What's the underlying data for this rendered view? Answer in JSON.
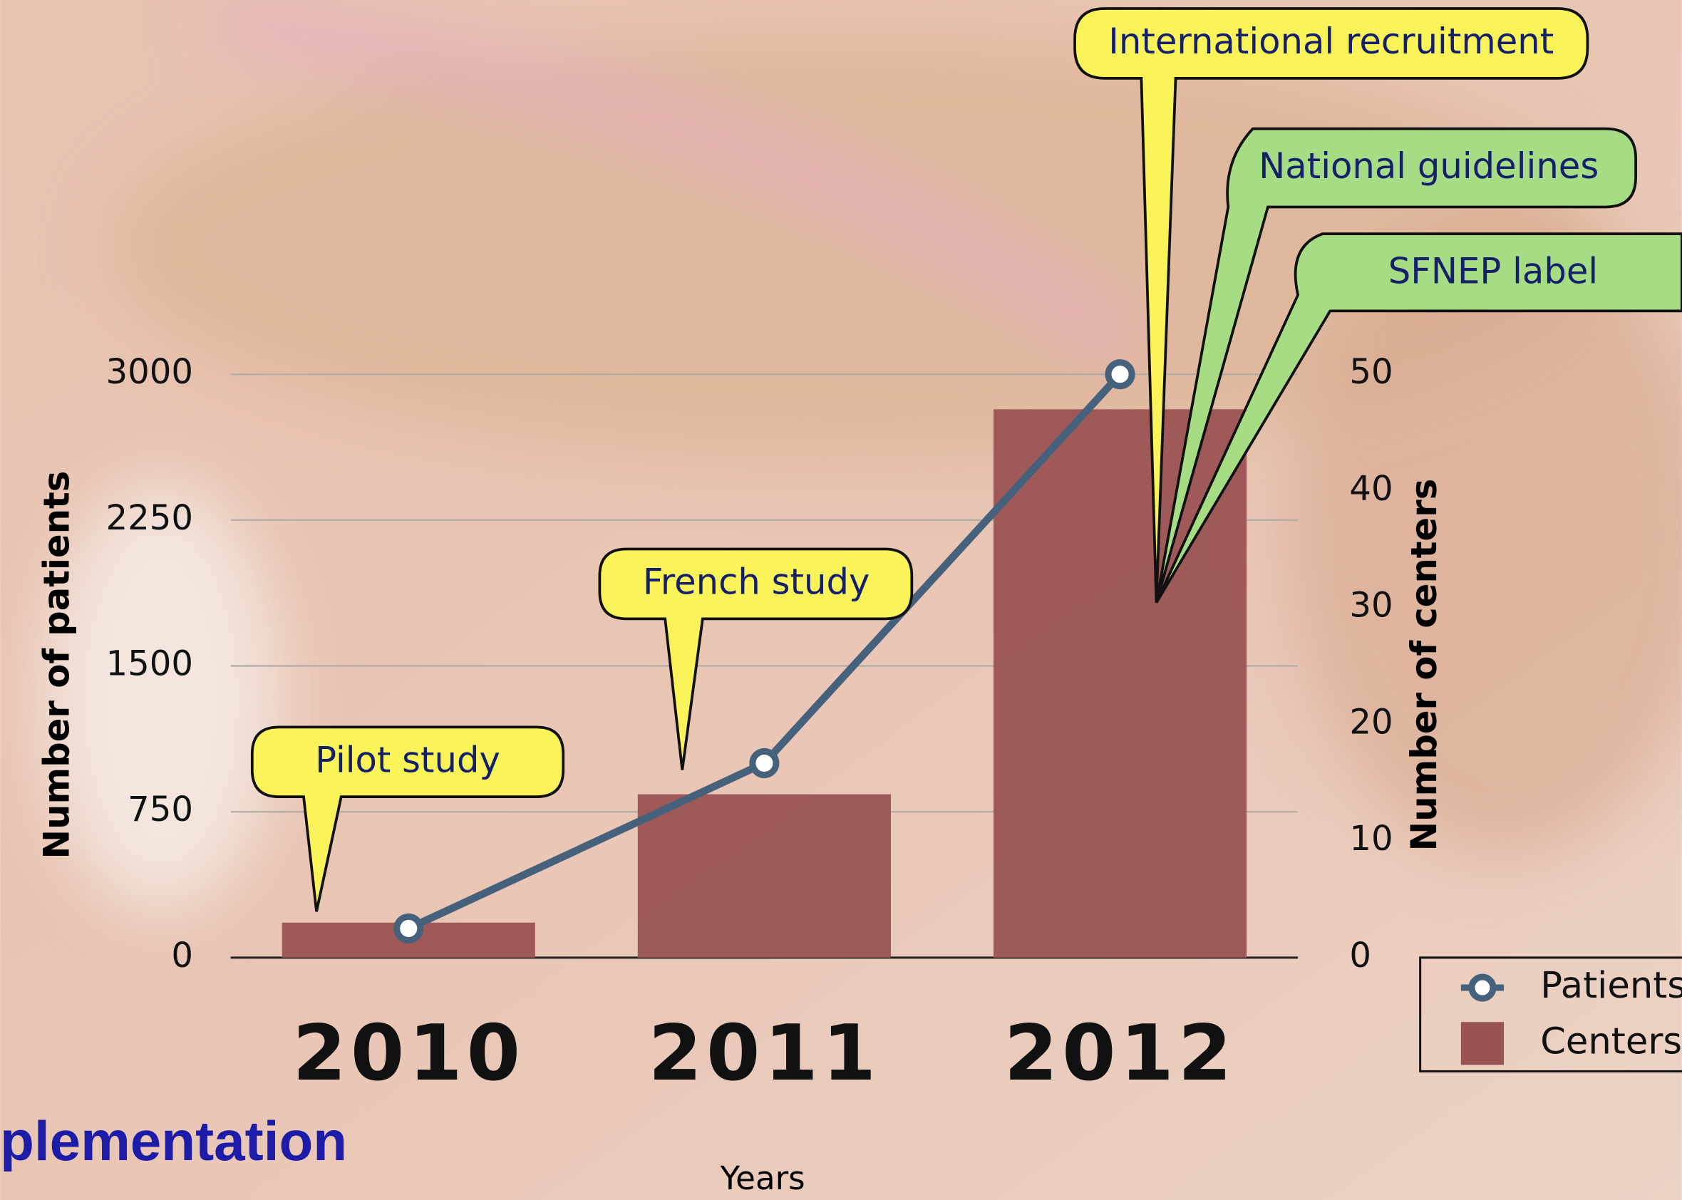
{
  "chart_data": {
    "type": "combo",
    "categories": [
      "2010",
      "2011",
      "2012"
    ],
    "series": [
      {
        "name": "Centers",
        "type": "bar",
        "axis": "y2",
        "color": "#9a5353",
        "values": [
          3,
          14,
          47
        ]
      },
      {
        "name": "Patients",
        "type": "line",
        "axis": "y",
        "color": "#46617b",
        "values": [
          150,
          1000,
          3000
        ]
      }
    ],
    "ylim": [
      0,
      3000
    ],
    "yticks": [
      0,
      750,
      1500,
      2250,
      3000
    ],
    "y2lim": [
      0,
      50
    ],
    "y2ticks": [
      0,
      10,
      20,
      30,
      40,
      50
    ],
    "y_label": "Number of patients",
    "y2_label": "Number of centers",
    "x_label": "Years",
    "grid": true,
    "legend": "lower right",
    "annotations": [
      "Pilot study",
      "French study",
      "International recruitment",
      "National guidelines",
      "SFNEP label"
    ],
    "footer_text": "plementation"
  }
}
